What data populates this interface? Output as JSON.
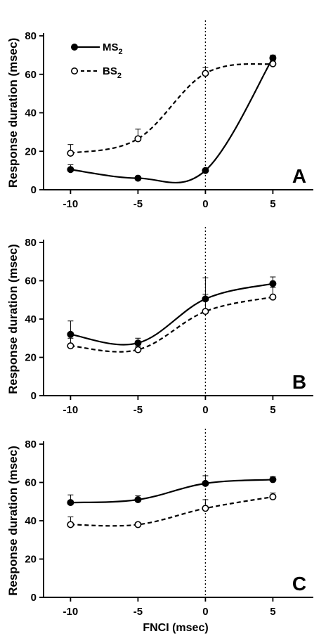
{
  "chart_data": [
    {
      "type": "line",
      "panel_label": "A",
      "ylabel": "Response duration (msec)",
      "xlabel": "",
      "x": [
        -10,
        -5,
        0,
        5
      ],
      "xlim": [
        -12,
        8
      ],
      "ylim": [
        0,
        80
      ],
      "xticks": [
        -10,
        -5,
        0,
        5
      ],
      "yticks": [
        0,
        20,
        40,
        60,
        80
      ],
      "vline_at": 0,
      "legend": {
        "placement": "top-left",
        "entries": [
          {
            "text": "MS",
            "sub": "2",
            "series": 0
          },
          {
            "text": "BS",
            "sub": "2",
            "series": 1
          }
        ]
      },
      "series": [
        {
          "name": "MS2",
          "marker": "filled-circle",
          "line": "solid",
          "values": [
            10.5,
            6,
            10,
            68.5
          ],
          "errors": [
            2.5,
            0.8,
            0.8,
            1.5
          ]
        },
        {
          "name": "BS2",
          "marker": "open-circle",
          "line": "dashed",
          "values": [
            19,
            26.5,
            60.5,
            65.5
          ],
          "errors": [
            4.5,
            5,
            3,
            1.5
          ]
        }
      ]
    },
    {
      "type": "line",
      "panel_label": "B",
      "ylabel": "Response duration (msec)",
      "xlabel": "",
      "x": [
        -10,
        -5,
        0,
        5
      ],
      "xlim": [
        -12,
        8
      ],
      "ylim": [
        0,
        80
      ],
      "xticks": [
        -10,
        -5,
        0,
        5
      ],
      "yticks": [
        0,
        20,
        40,
        60,
        80
      ],
      "vline_at": 0,
      "series": [
        {
          "name": "MS2",
          "marker": "filled-circle",
          "line": "solid",
          "values": [
            32,
            27.5,
            50.5,
            58.5
          ],
          "errors": [
            7,
            2.5,
            11,
            3.5
          ]
        },
        {
          "name": "BS2",
          "marker": "open-circle",
          "line": "dashed",
          "values": [
            26,
            24,
            44,
            51.5
          ],
          "errors": [
            4,
            1.5,
            9,
            5
          ]
        }
      ]
    },
    {
      "type": "line",
      "panel_label": "C",
      "ylabel": "Response duration (msec)",
      "xlabel": "FNCI (msec)",
      "x": [
        -10,
        -5,
        0,
        5
      ],
      "xlim": [
        -12,
        8
      ],
      "ylim": [
        0,
        80
      ],
      "xticks": [
        -10,
        -5,
        0,
        5
      ],
      "yticks": [
        0,
        20,
        40,
        60,
        80
      ],
      "vline_at": 0,
      "series": [
        {
          "name": "MS2",
          "marker": "filled-circle",
          "line": "solid",
          "values": [
            49.5,
            51,
            59.5,
            61.5
          ],
          "errors": [
            4,
            2,
            4,
            1.5
          ]
        },
        {
          "name": "BS2",
          "marker": "open-circle",
          "line": "dashed",
          "values": [
            38,
            38,
            46.5,
            52.5
          ],
          "errors": [
            4,
            1,
            4.5,
            2
          ]
        }
      ]
    }
  ]
}
